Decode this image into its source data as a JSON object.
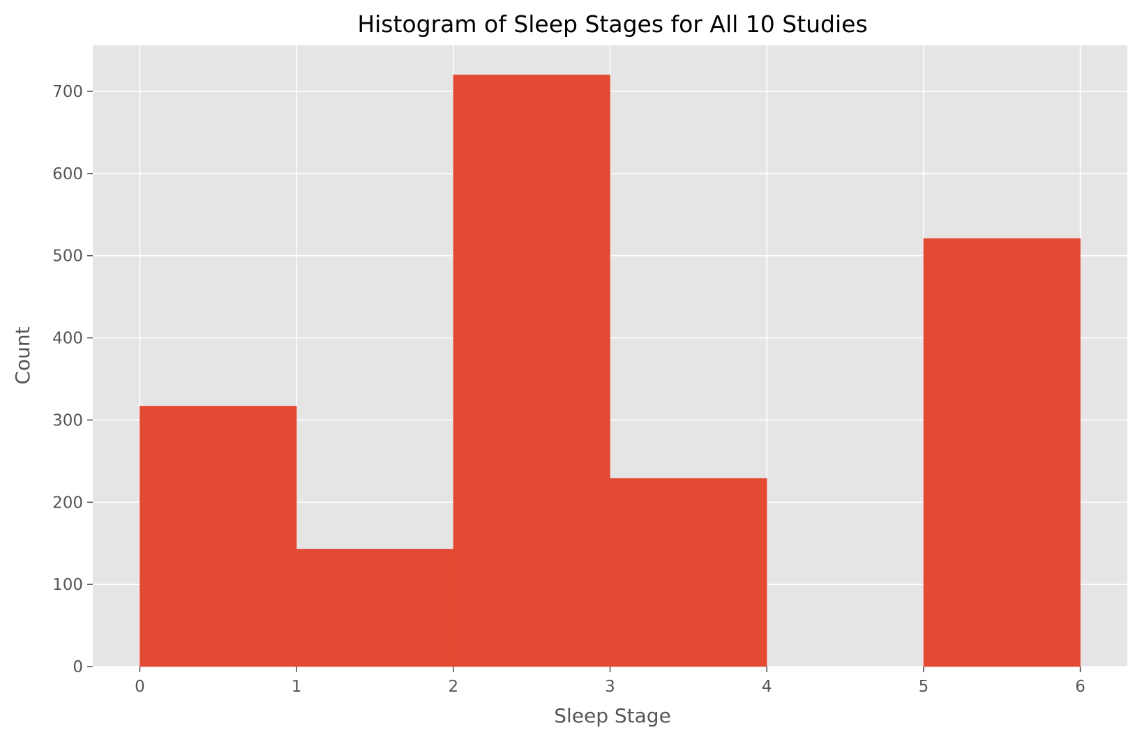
{
  "chart_data": {
    "type": "bar",
    "title": "Histogram of Sleep Stages for All 10 Studies",
    "xlabel": "Sleep Stage",
    "ylabel": "Count",
    "bin_edges": [
      0,
      1,
      2,
      3,
      4,
      5,
      6
    ],
    "values": [
      317,
      143,
      720,
      229,
      0,
      521
    ],
    "xlim": [
      -0.3,
      6.3
    ],
    "ylim": [
      0,
      756
    ],
    "x_ticks": [
      "0",
      "1",
      "2",
      "3",
      "4",
      "5",
      "6"
    ],
    "y_ticks": [
      "0",
      "100",
      "200",
      "300",
      "400",
      "500",
      "600",
      "700"
    ],
    "grid": true,
    "style": "ggplot",
    "colors": {
      "bar": "#E24A33",
      "plot_background": "#E5E5E5",
      "grid": "#FFFFFF",
      "text": "#555555"
    }
  }
}
